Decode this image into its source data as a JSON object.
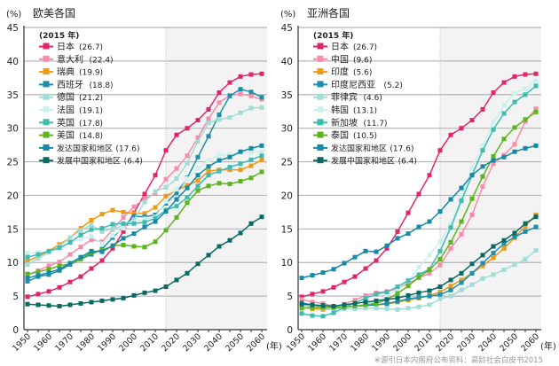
{
  "chart_data": [
    {
      "type": "line",
      "title": "欧美各国",
      "ylabel": "(%)",
      "xlabel": "(年)",
      "ylim": [
        0,
        45
      ],
      "yticks": [
        0,
        5,
        10,
        15,
        20,
        25,
        30,
        35,
        40,
        45
      ],
      "xticks": [
        "1950",
        "1960",
        "1970",
        "1980",
        "1990",
        "2000",
        "2010",
        "2020",
        "2030",
        "2040",
        "2050",
        "2060"
      ],
      "x": [
        1950,
        1955,
        1960,
        1965,
        1970,
        1975,
        1980,
        1985,
        1990,
        1995,
        2000,
        2005,
        2010,
        2015,
        2020,
        2025,
        2030,
        2035,
        2040,
        2045,
        2050,
        2055,
        2060
      ],
      "projection_start": 2015,
      "legend_title": "(2015 年)",
      "series": [
        {
          "name": "日本",
          "label": "(26.7)",
          "color": "#e0266b",
          "values": [
            4.9,
            5.3,
            5.7,
            6.3,
            7.1,
            7.9,
            9.1,
            10.3,
            12.1,
            14.6,
            17.4,
            20.2,
            23.0,
            26.7,
            29.0,
            30.0,
            31.2,
            32.8,
            35.3,
            36.8,
            37.7,
            38.0,
            38.1
          ]
        },
        {
          "name": "意大利",
          "label": "(22.4)",
          "color": "#f88ca8",
          "values": [
            8.1,
            8.8,
            9.5,
            10.1,
            11.2,
            12.3,
            13.4,
            13.1,
            14.9,
            16.7,
            18.3,
            19.5,
            20.3,
            22.4,
            24.0,
            25.9,
            28.6,
            31.4,
            33.8,
            34.9,
            35.1,
            34.8,
            34.3
          ]
        },
        {
          "name": "瑞典",
          "label": "(19.9)",
          "color": "#f09a12",
          "values": [
            10.2,
            10.9,
            11.7,
            12.7,
            13.7,
            15.1,
            16.3,
            17.2,
            17.8,
            17.5,
            17.3,
            17.3,
            18.2,
            19.9,
            20.7,
            21.5,
            22.2,
            23.6,
            23.8,
            23.8,
            23.8,
            24.4,
            25.3
          ]
        },
        {
          "name": "西班牙",
          "label": "(18.8)",
          "color": "#1b8fb0",
          "values": [
            7.2,
            7.9,
            8.2,
            8.8,
            9.7,
            10.5,
            11.2,
            12.0,
            13.7,
            15.3,
            16.9,
            16.8,
            17.1,
            18.8,
            20.4,
            22.6,
            25.7,
            28.8,
            32.0,
            34.8,
            35.8,
            35.4,
            34.6
          ]
        },
        {
          "name": "德国",
          "label": "(21.2)",
          "color": "#9fddd6",
          "values": [
            9.7,
            10.6,
            11.5,
            12.4,
            13.7,
            14.8,
            15.6,
            14.6,
            15.0,
            15.5,
            16.4,
            19.0,
            20.6,
            21.2,
            22.5,
            24.8,
            28.0,
            30.8,
            31.3,
            31.6,
            32.3,
            33.0,
            33.1
          ]
        },
        {
          "name": "法国",
          "label": "(19.1)",
          "color": "#ccf0ee",
          "values": [
            11.4,
            11.5,
            11.6,
            12.0,
            12.9,
            13.5,
            13.9,
            12.8,
            14.0,
            15.1,
            16.0,
            16.5,
            16.8,
            19.1,
            20.9,
            22.5,
            24.0,
            25.2,
            26.0,
            26.1,
            26.3,
            26.4,
            26.5
          ]
        },
        {
          "name": "英国",
          "label": "(17.8)",
          "color": "#3fbcb2",
          "values": [
            10.8,
            11.2,
            11.7,
            12.2,
            13.0,
            14.1,
            14.9,
            15.1,
            15.7,
            15.8,
            15.8,
            16.0,
            16.6,
            17.8,
            18.4,
            19.7,
            21.4,
            23.0,
            23.6,
            24.2,
            24.7,
            25.3,
            25.9
          ]
        },
        {
          "name": "美国",
          "label": "(14.8)",
          "color": "#5cb51f",
          "values": [
            8.3,
            8.6,
            9.0,
            9.5,
            9.8,
            10.5,
            11.5,
            11.8,
            12.5,
            12.6,
            12.4,
            12.3,
            13.1,
            14.8,
            16.7,
            18.9,
            20.7,
            21.4,
            21.8,
            21.7,
            22.1,
            22.6,
            23.5
          ]
        },
        {
          "name": "发达国家和地区",
          "label": "(17.6)",
          "color": "#138aa7",
          "values": [
            7.7,
            8.1,
            8.5,
            9.0,
            9.9,
            10.8,
            11.7,
            11.6,
            12.5,
            13.6,
            14.3,
            15.3,
            16.1,
            17.6,
            19.4,
            21.1,
            23.0,
            24.3,
            25.2,
            25.7,
            26.5,
            27.0,
            27.4
          ]
        },
        {
          "name": "发展中国家和地区",
          "label": "(6.4)",
          "color": "#0a6a63",
          "values": [
            3.8,
            3.7,
            3.6,
            3.5,
            3.7,
            3.9,
            4.1,
            4.3,
            4.5,
            4.7,
            5.1,
            5.5,
            5.8,
            6.4,
            7.4,
            8.4,
            9.8,
            11.1,
            12.4,
            13.3,
            14.4,
            15.8,
            16.8
          ]
        }
      ]
    },
    {
      "type": "line",
      "title": "亚洲各国",
      "ylabel": "(%)",
      "xlabel": "(年)",
      "ylim": [
        0,
        45
      ],
      "yticks": [
        0,
        5,
        10,
        15,
        20,
        25,
        30,
        35,
        40,
        45
      ],
      "xticks": [
        "1950",
        "1960",
        "1970",
        "1980",
        "1990",
        "2000",
        "2010",
        "2020",
        "2030",
        "2040",
        "2050",
        "2060"
      ],
      "x": [
        1950,
        1955,
        1960,
        1965,
        1970,
        1975,
        1980,
        1985,
        1990,
        1995,
        2000,
        2005,
        2010,
        2015,
        2020,
        2025,
        2030,
        2035,
        2040,
        2045,
        2050,
        2055,
        2060
      ],
      "projection_start": 2015,
      "legend_title": "(2015 年)",
      "series": [
        {
          "name": "日本",
          "label": "(26.7)",
          "color": "#e0266b",
          "values": [
            4.9,
            5.3,
            5.7,
            6.3,
            7.1,
            7.9,
            9.1,
            10.3,
            12.1,
            14.6,
            17.4,
            20.2,
            23.0,
            26.7,
            29.0,
            30.0,
            31.2,
            32.8,
            35.3,
            36.8,
            37.7,
            38.0,
            38.1
          ]
        },
        {
          "name": "中国",
          "label": "(9.6)",
          "color": "#f88ca8",
          "values": [
            4.5,
            4.1,
            3.9,
            3.5,
            3.8,
            4.4,
            5.1,
            5.5,
            5.7,
            6.1,
            6.9,
            7.7,
            8.4,
            9.6,
            12.1,
            14.2,
            17.1,
            21.3,
            24.7,
            26.0,
            27.6,
            31.0,
            32.9
          ]
        },
        {
          "name": "印度",
          "label": "(5.6)",
          "color": "#f09a12",
          "values": [
            3.1,
            3.1,
            3.0,
            3.1,
            3.3,
            3.5,
            3.6,
            3.7,
            3.8,
            4.1,
            4.4,
            4.7,
            5.1,
            5.6,
            6.5,
            7.4,
            8.4,
            9.5,
            10.7,
            12.1,
            13.7,
            15.4,
            17.1
          ]
        },
        {
          "name": "印度尼西亚",
          "label": "(5.2)",
          "color": "#1b8fb0",
          "values": [
            4.0,
            3.7,
            3.4,
            3.3,
            3.3,
            3.5,
            3.6,
            3.7,
            3.9,
            4.2,
            4.6,
            4.8,
            5.0,
            5.2,
            5.9,
            7.0,
            8.4,
            9.9,
            11.4,
            12.8,
            13.8,
            14.6,
            15.3
          ]
        },
        {
          "name": "菲律宾",
          "label": "(4.6)",
          "color": "#9fddd6",
          "values": [
            3.6,
            3.4,
            3.2,
            3.1,
            3.1,
            3.1,
            3.2,
            3.2,
            3.1,
            3.0,
            3.2,
            3.4,
            3.7,
            4.6,
            5.0,
            5.9,
            6.7,
            7.6,
            8.2,
            8.9,
            9.7,
            10.5,
            11.8
          ]
        },
        {
          "name": "韩国",
          "label": "(13.1)",
          "color": "#ccf0ee",
          "values": [
            2.9,
            3.3,
            3.4,
            3.4,
            3.3,
            3.5,
            3.8,
            4.3,
            5.1,
            6.0,
            7.3,
            9.3,
            11.1,
            13.1,
            15.7,
            19.8,
            24.1,
            27.4,
            30.9,
            33.4,
            35.2,
            35.9,
            37.1
          ]
        },
        {
          "name": "新加坡",
          "label": "(11.7)",
          "color": "#3fbcb2",
          "values": [
            2.4,
            2.1,
            2.0,
            2.5,
            3.3,
            4.0,
            4.7,
            5.3,
            5.6,
            6.4,
            7.3,
            8.2,
            9.0,
            11.7,
            15.2,
            19.2,
            23.0,
            26.7,
            29.8,
            32.2,
            33.9,
            35.0,
            36.3
          ]
        },
        {
          "name": "泰国",
          "label": "(10.5)",
          "color": "#5cb51f",
          "values": [
            3.2,
            3.3,
            3.3,
            3.3,
            3.4,
            3.5,
            3.7,
            3.9,
            4.5,
            5.4,
            6.5,
            7.8,
            8.9,
            10.5,
            13.0,
            16.1,
            19.5,
            22.8,
            25.8,
            28.4,
            30.1,
            31.3,
            32.4
          ]
        },
        {
          "name": "发达国家和地区",
          "label": "(17.6)",
          "color": "#138aa7",
          "values": [
            7.7,
            8.1,
            8.5,
            9.0,
            9.9,
            10.8,
            11.7,
            11.6,
            12.5,
            13.6,
            14.3,
            15.3,
            16.1,
            17.6,
            19.4,
            21.1,
            23.0,
            24.3,
            25.2,
            25.7,
            26.5,
            27.0,
            27.4
          ]
        },
        {
          "name": "发展中国家和地区",
          "label": "(6.4)",
          "color": "#0a6a63",
          "values": [
            3.8,
            3.7,
            3.6,
            3.5,
            3.7,
            3.9,
            4.1,
            4.3,
            4.5,
            4.7,
            5.1,
            5.5,
            5.8,
            6.4,
            7.4,
            8.4,
            9.8,
            11.1,
            12.4,
            13.3,
            14.4,
            15.8,
            16.8
          ]
        }
      ]
    }
  ],
  "source_note": "※源引日本内阁府公布资料：高龄社会白皮书2015"
}
